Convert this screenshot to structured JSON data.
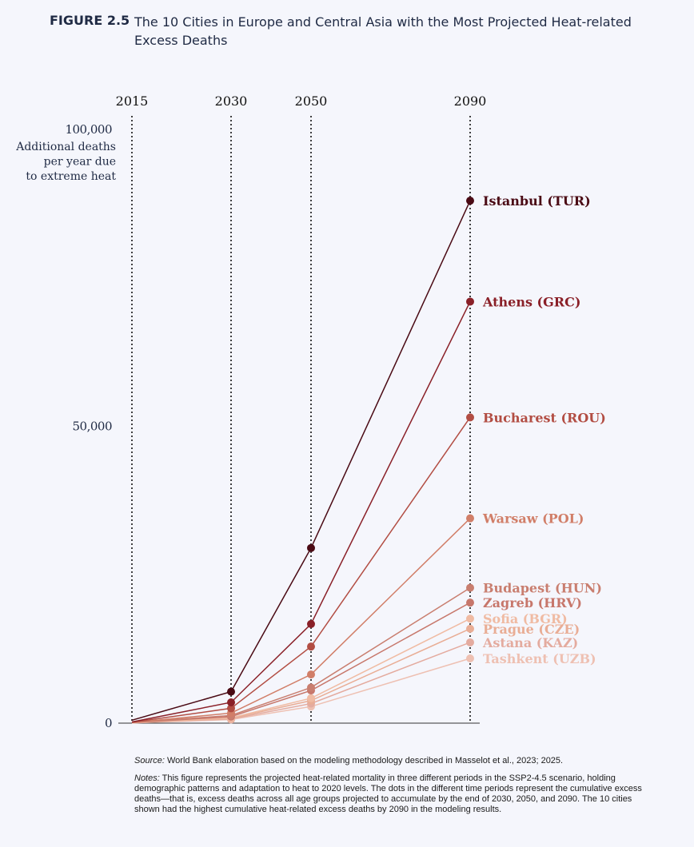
{
  "figure": {
    "label": "FIGURE 2.5",
    "title": "The 10 Cities in Europe and Central Asia with the Most Projected Heat-related Excess Deaths"
  },
  "footer": {
    "source_label": "Source:",
    "source_text": "World Bank elaboration based on the modeling methodology described in Masselot et al., 2023; 2025.",
    "notes_label": "Notes:",
    "notes_text": "This figure represents the projected heat-related mortality in three different periods in the SSP2-4.5 scenario, holding demographic patterns and adaptation to heat to 2020 levels. The dots in the different time periods represent the cumulative excess deaths—that is, excess deaths across all age groups projected to accumulate by the end of 2030, 2050, and 2090. The 10 cities shown had the highest cumulative heat-related excess deaths by 2090 in the modeling results."
  },
  "chart_data": {
    "type": "line",
    "x": [
      "2015",
      "2030",
      "2050",
      "2090"
    ],
    "ylim": [
      0,
      100000
    ],
    "yticks": [
      {
        "value": 0,
        "label": "0"
      },
      {
        "value": 50000,
        "label": "50,000"
      },
      {
        "value": 100000,
        "label": "100,000"
      }
    ],
    "ylabel": "Additional deaths per year due to extreme heat",
    "series": [
      {
        "name": "Istanbul (TUR)",
        "color": "#4a0a14",
        "values": [
          500,
          5300,
          29500,
          88000
        ]
      },
      {
        "name": "Athens (GRC)",
        "color": "#8a2028",
        "values": [
          200,
          3500,
          16700,
          71000
        ]
      },
      {
        "name": "Bucharest (ROU)",
        "color": "#b24d43",
        "values": [
          150,
          2500,
          12900,
          51500
        ]
      },
      {
        "name": "Warsaw (POL)",
        "color": "#d17e68",
        "values": [
          100,
          1700,
          8200,
          34500
        ]
      },
      {
        "name": "Budapest (HUN)",
        "color": "#c97e6f",
        "values": [
          100,
          1300,
          6000,
          22800
        ]
      },
      {
        "name": "Zagreb (HRV)",
        "color": "#c7776b",
        "values": [
          80,
          1100,
          5500,
          20300
        ]
      },
      {
        "name": "Sofia (BGR)",
        "color": "#f0bba3",
        "values": [
          60,
          900,
          4200,
          17600
        ]
      },
      {
        "name": "Prague (CZE)",
        "color": "#e9ad95",
        "values": [
          60,
          800,
          3800,
          15900
        ]
      },
      {
        "name": "Astana (KAZ)",
        "color": "#e4ab9f",
        "values": [
          50,
          700,
          3300,
          13600
        ]
      },
      {
        "name": "Tashkent (UZB)",
        "color": "#eec0b2",
        "values": [
          40,
          600,
          2800,
          10900
        ]
      }
    ]
  }
}
